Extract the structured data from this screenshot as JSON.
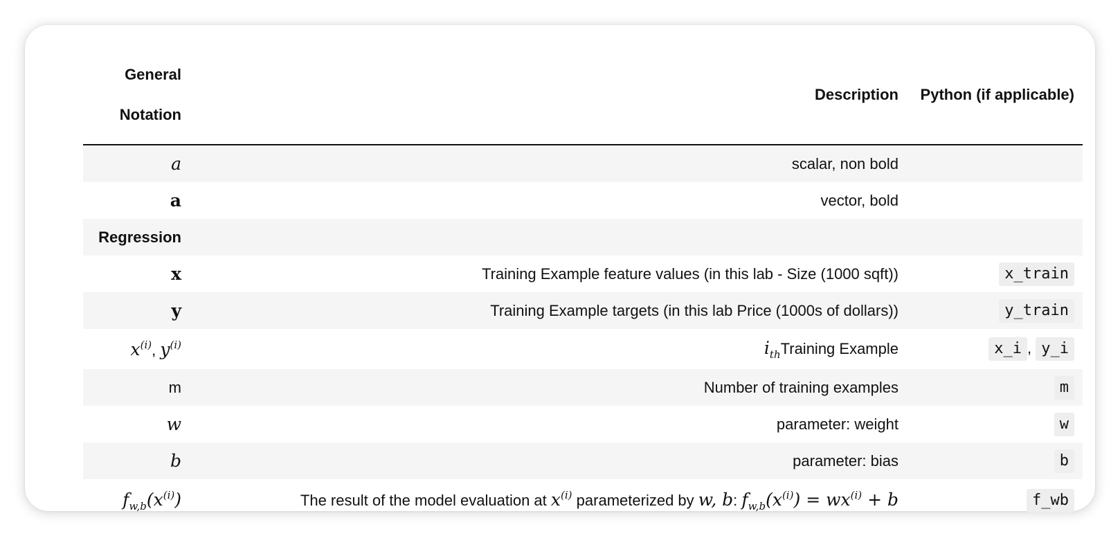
{
  "header": {
    "col1_line1": "General",
    "col1_line2": "Notation",
    "col2": "Description",
    "col3": "Python (if applicable)"
  },
  "rows": [
    {
      "notation": "a",
      "description": "scalar, non bold",
      "python": ""
    },
    {
      "notation": "a",
      "description": "vector, bold",
      "python": ""
    },
    {
      "notation": "Regression",
      "description": "",
      "python": ""
    },
    {
      "notation": "x",
      "description": "Training Example feature values (in this lab - Size (1000 sqft))",
      "python": "x_train"
    },
    {
      "notation": "y",
      "description": "Training Example targets (in this lab Price (1000s of dollars))",
      "python": "y_train"
    },
    {
      "notation_x": "x",
      "notation_sep": ", ",
      "notation_y": "y",
      "notation_sup": "(i)",
      "description_i": "i",
      "description_sub": "th",
      "description": "Training Example",
      "python_a": "x_i",
      "python_sep": ",",
      "python_b": "y_i"
    },
    {
      "notation": "m",
      "description": "Number of training examples",
      "python": "m"
    },
    {
      "notation": "w",
      "description": "parameter: weight",
      "python": "w"
    },
    {
      "notation": "b",
      "description": "parameter: bias",
      "python": "b"
    },
    {
      "notation_f": "f",
      "notation_sub": "w,b",
      "notation_open": "(",
      "notation_x": "x",
      "notation_sup": "(i)",
      "notation_close": ")",
      "description_prefix": "The result of the model evaluation at",
      "description_mid": "parameterized by",
      "description_params": "w, b",
      "description_colon": ":",
      "equation_lhs_f": "f",
      "equation_lhs_sub": "w,b",
      "equation_lhs_x": "x",
      "equation_lhs_sup": "(i)",
      "equation_eq": "=",
      "equation_w": "w",
      "equation_x": "x",
      "equation_sup": "(i)",
      "equation_plus": "+",
      "equation_b": "b",
      "python": "f_wb"
    }
  ]
}
